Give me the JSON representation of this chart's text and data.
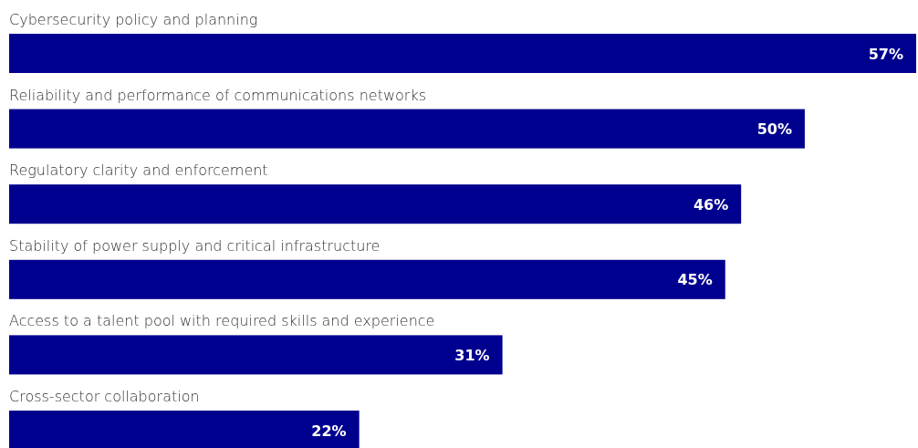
{
  "chart_data": {
    "type": "bar",
    "orientation": "horizontal",
    "categories": [
      "Cybersecurity policy and planning",
      "Reliability and performance of communications networks",
      "Regulatory clarity and enforcement",
      "Stability of power supply and critical infrastructure",
      "Access to a talent pool with required skills and experience",
      "Cross-sector collaboration"
    ],
    "values": [
      57,
      50,
      46,
      45,
      31,
      22
    ],
    "value_labels": [
      "57%",
      "50%",
      "46%",
      "45%",
      "31%",
      "22%"
    ],
    "color": "#00008f"
  }
}
